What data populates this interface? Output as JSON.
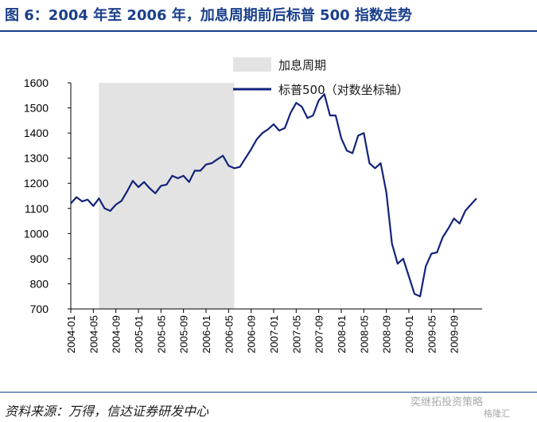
{
  "figure": {
    "title": "图 6：2004 年至 2006 年，加息周期前后标普 500 指数走势",
    "source": "资料来源：万得，信达证券研发中心",
    "watermark": "格隆汇",
    "watermark_channel": "奕继拓投资策略"
  },
  "colors": {
    "title": "#1a3f8a",
    "series": "#13237a",
    "shade": "#e3e3e3"
  },
  "chart_data": {
    "type": "line",
    "title": "",
    "xlabel": "",
    "ylabel": "",
    "ylim": [
      700,
      1600
    ],
    "yticks": [
      700,
      800,
      900,
      1000,
      1100,
      1200,
      1300,
      1400,
      1500,
      1600
    ],
    "xlim": [
      "2004-01",
      "2010-02"
    ],
    "xticks": [
      "2004-01",
      "2004-05",
      "2004-09",
      "2005-01",
      "2005-05",
      "2005-09",
      "2006-01",
      "2006-05",
      "2006-09",
      "2007-01",
      "2007-05",
      "2007-09",
      "2008-01",
      "2008-05",
      "2008-09",
      "2009-01",
      "2009-05",
      "2009-09"
    ],
    "grid": false,
    "legend_position": "top-center",
    "shaded_regions": [
      {
        "name": "加息周期",
        "start": "2004-06",
        "end": "2006-06"
      }
    ],
    "series": [
      {
        "name": "标普500（对数坐标轴）",
        "x": [
          "2004-01",
          "2004-02",
          "2004-03",
          "2004-04",
          "2004-05",
          "2004-06",
          "2004-07",
          "2004-08",
          "2004-09",
          "2004-10",
          "2004-11",
          "2004-12",
          "2005-01",
          "2005-02",
          "2005-03",
          "2005-04",
          "2005-05",
          "2005-06",
          "2005-07",
          "2005-08",
          "2005-09",
          "2005-10",
          "2005-11",
          "2005-12",
          "2006-01",
          "2006-02",
          "2006-03",
          "2006-04",
          "2006-05",
          "2006-06",
          "2006-07",
          "2006-08",
          "2006-09",
          "2006-10",
          "2006-11",
          "2006-12",
          "2007-01",
          "2007-02",
          "2007-03",
          "2007-04",
          "2007-05",
          "2007-06",
          "2007-07",
          "2007-08",
          "2007-09",
          "2007-10",
          "2007-11",
          "2007-12",
          "2008-01",
          "2008-02",
          "2008-03",
          "2008-04",
          "2008-05",
          "2008-06",
          "2008-07",
          "2008-08",
          "2008-09",
          "2008-10",
          "2008-11",
          "2008-12",
          "2009-01",
          "2009-02",
          "2009-03",
          "2009-04",
          "2009-05",
          "2009-06",
          "2009-07",
          "2009-08",
          "2009-09",
          "2009-10",
          "2009-11",
          "2009-12",
          "2010-01"
        ],
        "values": [
          1120,
          1145,
          1128,
          1135,
          1110,
          1140,
          1100,
          1090,
          1115,
          1130,
          1168,
          1210,
          1185,
          1205,
          1180,
          1160,
          1190,
          1195,
          1230,
          1220,
          1230,
          1205,
          1250,
          1250,
          1275,
          1280,
          1295,
          1310,
          1270,
          1260,
          1265,
          1300,
          1335,
          1375,
          1400,
          1415,
          1435,
          1410,
          1420,
          1480,
          1520,
          1505,
          1460,
          1470,
          1530,
          1555,
          1470,
          1470,
          1380,
          1330,
          1320,
          1390,
          1400,
          1280,
          1260,
          1280,
          1165,
          960,
          880,
          900,
          830,
          760,
          750,
          870,
          920,
          925,
          985,
          1020,
          1060,
          1040,
          1090,
          1115,
          1140
        ]
      }
    ]
  }
}
